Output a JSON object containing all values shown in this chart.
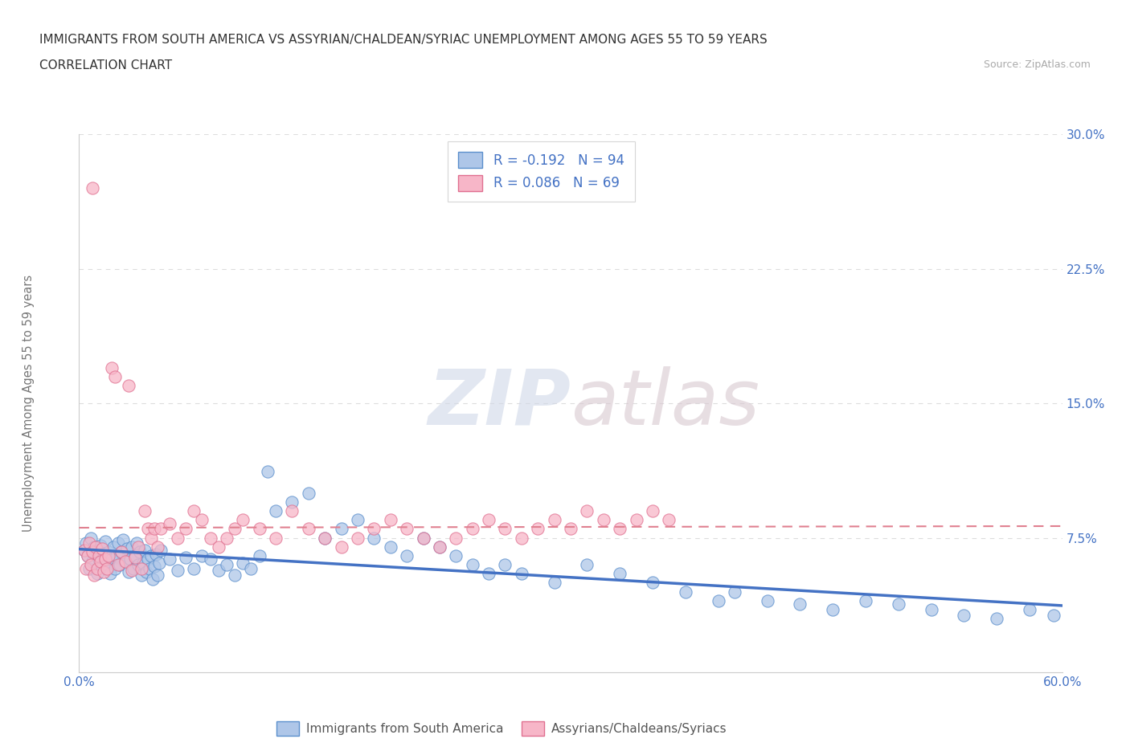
{
  "title_line1": "IMMIGRANTS FROM SOUTH AMERICA VS ASSYRIAN/CHALDEAN/SYRIAC UNEMPLOYMENT AMONG AGES 55 TO 59 YEARS",
  "title_line2": "CORRELATION CHART",
  "source_text": "Source: ZipAtlas.com",
  "ylabel": "Unemployment Among Ages 55 to 59 years",
  "xlim": [
    0.0,
    0.6
  ],
  "ylim": [
    0.0,
    0.3
  ],
  "xticks": [
    0.0,
    0.1,
    0.2,
    0.3,
    0.4,
    0.5,
    0.6
  ],
  "xticklabels": [
    "0.0%",
    "",
    "",
    "",
    "",
    "",
    "60.0%"
  ],
  "yticks": [
    0.0,
    0.075,
    0.15,
    0.225,
    0.3
  ],
  "yticklabels": [
    "",
    "7.5%",
    "15.0%",
    "22.5%",
    "30.0%"
  ],
  "blue_R": -0.192,
  "blue_N": 94,
  "pink_R": 0.086,
  "pink_N": 69,
  "blue_fill_color": "#aec6e8",
  "blue_edge_color": "#5b8fcc",
  "pink_fill_color": "#f7b6c8",
  "pink_edge_color": "#e07090",
  "blue_line_color": "#4472c4",
  "pink_line_color": "#e08090",
  "legend_label_blue": "Immigrants from South America",
  "legend_label_pink": "Assyrians/Chaldeans/Syriacs",
  "watermark": "ZIPatlas",
  "background_color": "#ffffff",
  "grid_color": "#dddddd",
  "tick_color": "#4472c4",
  "axis_label_color": "#777777",
  "blue_scatter_x": [
    0.003,
    0.004,
    0.005,
    0.006,
    0.007,
    0.008,
    0.009,
    0.01,
    0.011,
    0.012,
    0.013,
    0.014,
    0.015,
    0.016,
    0.017,
    0.018,
    0.019,
    0.02,
    0.021,
    0.022,
    0.023,
    0.024,
    0.025,
    0.026,
    0.027,
    0.028,
    0.029,
    0.03,
    0.031,
    0.032,
    0.033,
    0.034,
    0.035,
    0.036,
    0.037,
    0.038,
    0.039,
    0.04,
    0.041,
    0.042,
    0.043,
    0.044,
    0.045,
    0.046,
    0.047,
    0.048,
    0.049,
    0.05,
    0.055,
    0.06,
    0.065,
    0.07,
    0.075,
    0.08,
    0.085,
    0.09,
    0.095,
    0.1,
    0.105,
    0.11,
    0.115,
    0.12,
    0.13,
    0.14,
    0.15,
    0.16,
    0.17,
    0.18,
    0.19,
    0.2,
    0.21,
    0.22,
    0.23,
    0.24,
    0.25,
    0.26,
    0.27,
    0.29,
    0.31,
    0.33,
    0.35,
    0.37,
    0.39,
    0.4,
    0.42,
    0.44,
    0.46,
    0.48,
    0.5,
    0.52,
    0.54,
    0.56,
    0.58,
    0.595
  ],
  "blue_scatter_y": [
    0.068,
    0.072,
    0.065,
    0.058,
    0.075,
    0.062,
    0.07,
    0.068,
    0.055,
    0.063,
    0.071,
    0.059,
    0.066,
    0.073,
    0.06,
    0.067,
    0.055,
    0.063,
    0.07,
    0.058,
    0.065,
    0.072,
    0.06,
    0.067,
    0.074,
    0.062,
    0.069,
    0.056,
    0.063,
    0.07,
    0.058,
    0.065,
    0.072,
    0.06,
    0.067,
    0.054,
    0.061,
    0.068,
    0.056,
    0.063,
    0.058,
    0.065,
    0.052,
    0.059,
    0.066,
    0.054,
    0.061,
    0.068,
    0.063,
    0.057,
    0.064,
    0.058,
    0.065,
    0.063,
    0.057,
    0.06,
    0.054,
    0.061,
    0.058,
    0.065,
    0.112,
    0.09,
    0.095,
    0.1,
    0.075,
    0.08,
    0.085,
    0.075,
    0.07,
    0.065,
    0.075,
    0.07,
    0.065,
    0.06,
    0.055,
    0.06,
    0.055,
    0.05,
    0.06,
    0.055,
    0.05,
    0.045,
    0.04,
    0.045,
    0.04,
    0.038,
    0.035,
    0.04,
    0.038,
    0.035,
    0.032,
    0.03,
    0.035,
    0.032
  ],
  "pink_scatter_x": [
    0.003,
    0.004,
    0.005,
    0.006,
    0.007,
    0.008,
    0.009,
    0.01,
    0.011,
    0.012,
    0.013,
    0.014,
    0.015,
    0.016,
    0.017,
    0.018,
    0.02,
    0.022,
    0.024,
    0.026,
    0.028,
    0.03,
    0.032,
    0.034,
    0.036,
    0.038,
    0.04,
    0.042,
    0.044,
    0.046,
    0.048,
    0.05,
    0.055,
    0.06,
    0.065,
    0.07,
    0.075,
    0.08,
    0.085,
    0.09,
    0.095,
    0.1,
    0.11,
    0.12,
    0.13,
    0.14,
    0.15,
    0.16,
    0.17,
    0.18,
    0.19,
    0.2,
    0.21,
    0.22,
    0.23,
    0.24,
    0.25,
    0.26,
    0.27,
    0.28,
    0.29,
    0.3,
    0.31,
    0.32,
    0.33,
    0.34,
    0.35,
    0.36,
    0.008
  ],
  "pink_scatter_y": [
    0.068,
    0.058,
    0.065,
    0.072,
    0.06,
    0.067,
    0.054,
    0.07,
    0.058,
    0.065,
    0.062,
    0.069,
    0.056,
    0.063,
    0.058,
    0.065,
    0.17,
    0.165,
    0.06,
    0.067,
    0.062,
    0.16,
    0.057,
    0.064,
    0.07,
    0.058,
    0.09,
    0.08,
    0.075,
    0.08,
    0.07,
    0.08,
    0.083,
    0.075,
    0.08,
    0.09,
    0.085,
    0.075,
    0.07,
    0.075,
    0.08,
    0.085,
    0.08,
    0.075,
    0.09,
    0.08,
    0.075,
    0.07,
    0.075,
    0.08,
    0.085,
    0.08,
    0.075,
    0.07,
    0.075,
    0.08,
    0.085,
    0.08,
    0.075,
    0.08,
    0.085,
    0.08,
    0.09,
    0.085,
    0.08,
    0.085,
    0.09,
    0.085,
    0.27
  ]
}
